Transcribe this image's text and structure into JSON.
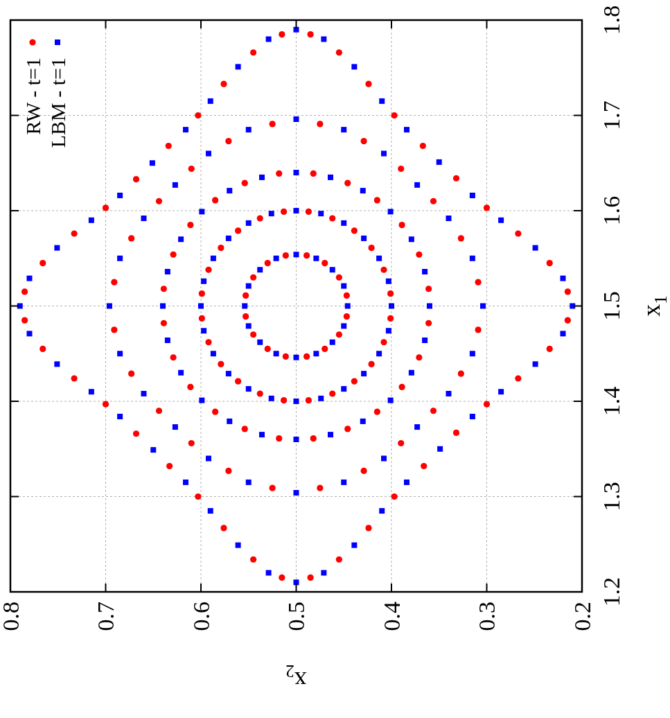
{
  "chart_data": {
    "type": "scatter",
    "xlabel": "x$_{2}$",
    "ylabel": "x$_{1}$",
    "xlim": [
      0.8,
      0.2
    ],
    "xticks": [
      0.8,
      0.7,
      0.6,
      0.5,
      0.4,
      0.3,
      0.2
    ],
    "ylim": [
      1.2,
      1.8
    ],
    "yticks": [
      1.2,
      1.3,
      1.4,
      1.5,
      1.6,
      1.7,
      1.8
    ],
    "grid": true,
    "legend": "top left",
    "series": [
      {
        "name": "RW - t=1",
        "color": "#ff0000",
        "marker": "circle",
        "values": [
          1.553,
          1.545,
          1.53,
          1.511,
          1.489,
          1.47,
          1.455,
          1.447,
          1.447,
          1.455,
          1.47,
          1.489,
          1.511,
          1.53,
          1.545,
          1.553,
          1.599,
          1.592,
          1.579,
          1.561,
          1.538,
          1.513,
          1.487,
          1.462,
          1.439,
          1.421,
          1.408,
          1.401,
          1.401,
          1.408,
          1.421,
          1.439,
          1.462,
          1.487,
          1.513,
          1.538,
          1.561,
          1.579,
          1.592,
          1.599,
          1.639,
          1.629,
          1.611,
          1.585,
          1.554,
          1.518,
          1.482,
          1.446,
          1.415,
          1.389,
          1.371,
          1.361,
          1.361,
          1.371,
          1.389,
          1.415,
          1.446,
          1.482,
          1.518,
          1.554,
          1.585,
          1.611,
          1.629,
          1.639,
          1.691,
          1.673,
          1.644,
          1.61,
          1.571,
          1.525,
          1.475,
          1.429,
          1.39,
          1.356,
          1.327,
          1.309,
          1.309,
          1.327,
          1.356,
          1.39,
          1.429,
          1.475,
          1.525,
          1.571,
          1.61,
          1.644,
          1.673,
          1.691,
          1.785,
          1.766,
          1.733,
          1.7,
          1.668,
          1.633,
          1.603,
          1.576,
          1.545,
          1.515,
          1.485,
          1.455,
          1.424,
          1.397,
          1.366,
          1.332,
          1.3,
          1.267,
          1.234,
          1.215,
          1.215,
          1.234,
          1.267,
          1.3,
          1.332,
          1.367,
          1.397,
          1.424,
          1.455,
          1.485,
          1.515,
          1.545,
          1.576,
          1.603,
          1.634,
          1.668,
          1.7,
          1.733,
          1.766,
          1.785
        ],
        "x": [
          0.511,
          0.53,
          0.545,
          0.553,
          0.553,
          0.545,
          0.53,
          0.511,
          0.489,
          0.47,
          0.455,
          0.447,
          0.447,
          0.455,
          0.47,
          0.489,
          0.513,
          0.538,
          0.561,
          0.579,
          0.592,
          0.599,
          0.599,
          0.592,
          0.579,
          0.561,
          0.538,
          0.513,
          0.487,
          0.462,
          0.439,
          0.421,
          0.408,
          0.401,
          0.401,
          0.408,
          0.421,
          0.439,
          0.462,
          0.487,
          0.518,
          0.554,
          0.585,
          0.611,
          0.629,
          0.639,
          0.639,
          0.629,
          0.611,
          0.585,
          0.554,
          0.518,
          0.482,
          0.446,
          0.415,
          0.389,
          0.371,
          0.361,
          0.361,
          0.371,
          0.389,
          0.415,
          0.446,
          0.482,
          0.525,
          0.571,
          0.61,
          0.644,
          0.673,
          0.691,
          0.691,
          0.673,
          0.644,
          0.61,
          0.571,
          0.525,
          0.475,
          0.429,
          0.39,
          0.356,
          0.327,
          0.309,
          0.309,
          0.327,
          0.356,
          0.39,
          0.429,
          0.475,
          0.515,
          0.545,
          0.576,
          0.603,
          0.634,
          0.668,
          0.7,
          0.733,
          0.766,
          0.785,
          0.785,
          0.766,
          0.733,
          0.7,
          0.668,
          0.633,
          0.603,
          0.576,
          0.545,
          0.515,
          0.485,
          0.455,
          0.424,
          0.397,
          0.366,
          0.332,
          0.3,
          0.267,
          0.234,
          0.215,
          0.215,
          0.234,
          0.267,
          0.3,
          0.332,
          0.367,
          0.397,
          0.424,
          0.455,
          0.485
        ]
      },
      {
        "name": "LBM - t=1",
        "color": "#0000ff",
        "marker": "square",
        "values": [
          1.554,
          1.55,
          1.538,
          1.521,
          1.5,
          1.479,
          1.462,
          1.45,
          1.446,
          1.45,
          1.462,
          1.479,
          1.5,
          1.521,
          1.538,
          1.55,
          1.6,
          1.597,
          1.587,
          1.571,
          1.55,
          1.526,
          1.5,
          1.474,
          1.45,
          1.429,
          1.413,
          1.403,
          1.4,
          1.403,
          1.413,
          1.429,
          1.45,
          1.474,
          1.5,
          1.526,
          1.55,
          1.571,
          1.587,
          1.597,
          1.64,
          1.635,
          1.621,
          1.599,
          1.57,
          1.536,
          1.5,
          1.464,
          1.43,
          1.401,
          1.379,
          1.365,
          1.36,
          1.365,
          1.379,
          1.401,
          1.43,
          1.464,
          1.5,
          1.536,
          1.57,
          1.599,
          1.621,
          1.635,
          1.696,
          1.685,
          1.66,
          1.627,
          1.592,
          1.55,
          1.5,
          1.45,
          1.408,
          1.373,
          1.34,
          1.315,
          1.304,
          1.315,
          1.34,
          1.373,
          1.408,
          1.45,
          1.5,
          1.55,
          1.592,
          1.627,
          1.66,
          1.685,
          1.79,
          1.78,
          1.751,
          1.715,
          1.685,
          1.65,
          1.616,
          1.59,
          1.561,
          1.529,
          1.5,
          1.471,
          1.439,
          1.41,
          1.384,
          1.349,
          1.315,
          1.285,
          1.249,
          1.22,
          1.21,
          1.22,
          1.249,
          1.285,
          1.315,
          1.35,
          1.384,
          1.41,
          1.439,
          1.471,
          1.5,
          1.529,
          1.561,
          1.59,
          1.616,
          1.651,
          1.685,
          1.715,
          1.751,
          1.78
        ],
        "x": [
          0.5,
          0.521,
          0.538,
          0.55,
          0.554,
          0.55,
          0.538,
          0.521,
          0.5,
          0.479,
          0.462,
          0.45,
          0.446,
          0.45,
          0.462,
          0.479,
          0.5,
          0.526,
          0.55,
          0.571,
          0.587,
          0.597,
          0.6,
          0.597,
          0.587,
          0.571,
          0.55,
          0.526,
          0.5,
          0.474,
          0.45,
          0.429,
          0.413,
          0.403,
          0.4,
          0.403,
          0.413,
          0.429,
          0.45,
          0.474,
          0.5,
          0.536,
          0.57,
          0.599,
          0.621,
          0.635,
          0.64,
          0.635,
          0.621,
          0.599,
          0.57,
          0.536,
          0.5,
          0.464,
          0.43,
          0.401,
          0.379,
          0.365,
          0.36,
          0.365,
          0.379,
          0.401,
          0.43,
          0.464,
          0.5,
          0.55,
          0.592,
          0.627,
          0.66,
          0.685,
          0.696,
          0.685,
          0.66,
          0.627,
          0.592,
          0.55,
          0.5,
          0.45,
          0.408,
          0.373,
          0.34,
          0.315,
          0.304,
          0.315,
          0.34,
          0.373,
          0.408,
          0.45,
          0.5,
          0.529,
          0.561,
          0.59,
          0.616,
          0.651,
          0.685,
          0.715,
          0.751,
          0.78,
          0.79,
          0.78,
          0.751,
          0.715,
          0.685,
          0.65,
          0.616,
          0.59,
          0.561,
          0.529,
          0.5,
          0.471,
          0.439,
          0.41,
          0.384,
          0.349,
          0.315,
          0.285,
          0.249,
          0.22,
          0.21,
          0.22,
          0.249,
          0.285,
          0.315,
          0.35,
          0.384,
          0.41,
          0.439,
          0.471
        ]
      }
    ]
  }
}
